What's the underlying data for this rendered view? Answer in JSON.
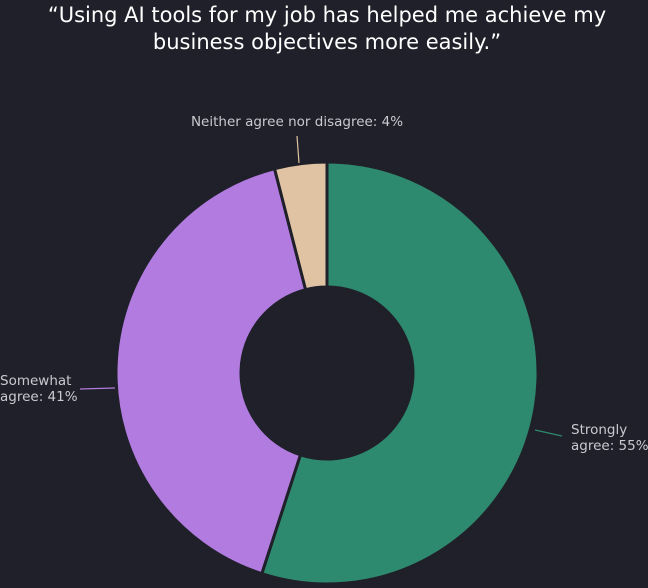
{
  "chart_data": {
    "type": "donut",
    "title": [
      "“Using AI tools for my job has helped me achieve my",
      "business objectives more easily.”"
    ],
    "categories": [
      "Strongly agree",
      "Somewhat agree",
      "Neither agree nor disagree"
    ],
    "values": [
      55,
      41,
      4
    ],
    "labels": [
      [
        "Strongly",
        "agree: 55%"
      ],
      [
        "Somewhat",
        "agree: 41%"
      ],
      [
        "Neither agree nor disagree: 4%"
      ]
    ],
    "colors": [
      "#2e8a6e",
      "#b27be0",
      "#e0c3a2"
    ]
  }
}
